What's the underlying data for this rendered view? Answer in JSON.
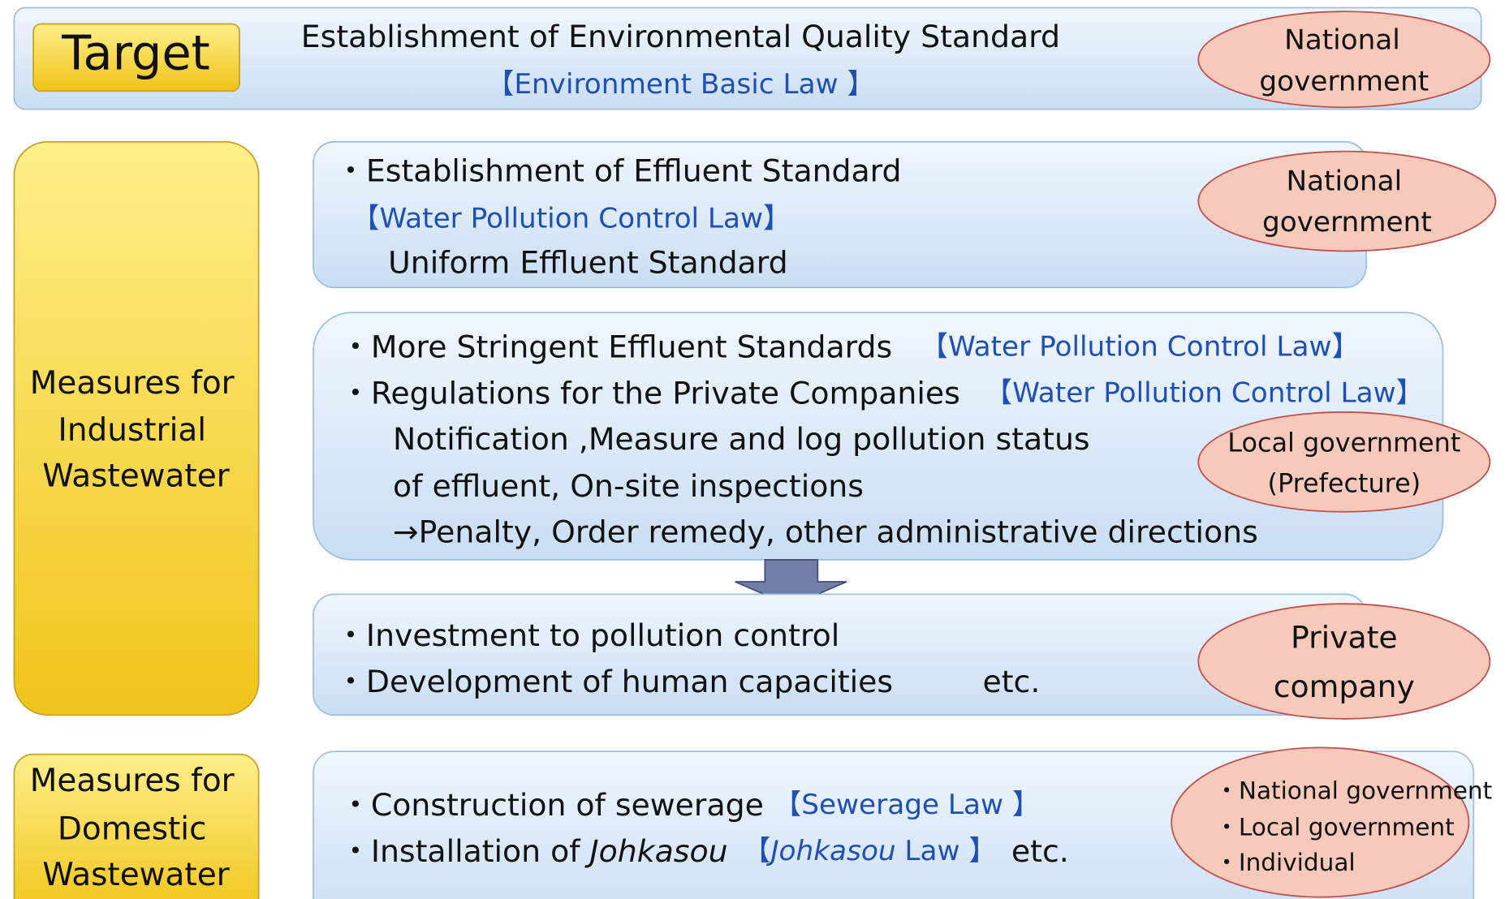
{
  "target": {
    "label": "Target",
    "title": "Establishment of Environmental Quality Standard",
    "law": "【Environment Basic Law 】",
    "actor": [
      "National",
      "government"
    ]
  },
  "industrial": {
    "label": [
      "Measures for",
      "Industrial",
      "Wastewater"
    ],
    "standard": {
      "item": "・Establishment of Effluent Standard",
      "law": "【Water Pollution Control Law】",
      "detail": "Uniform Effluent Standard",
      "actor": [
        "National",
        "government"
      ]
    },
    "regulation": {
      "items": [
        {
          "text": "・More Stringent Effluent Standards",
          "law": "【Water Pollution Control Law】"
        },
        {
          "text": "・Regulations for the Private Companies",
          "law": "【Water Pollution Control Law】"
        }
      ],
      "details": [
        "Notification ,Measure and log pollution status",
        "of effluent, On-site inspections",
        "→Penalty, Order remedy, other administrative directions"
      ],
      "actor": [
        "Local government",
        "(Prefecture)"
      ]
    },
    "company": {
      "items": [
        "・Investment to pollution control",
        "・Development of human capacities"
      ],
      "suffix": "etc.",
      "actor": [
        "Private",
        "company"
      ]
    }
  },
  "domestic": {
    "label": [
      "Measures for",
      "Domestic",
      "Wastewater"
    ],
    "sewerage": {
      "text": "・Construction of sewerage",
      "law": "【Sewerage Law 】"
    },
    "johkasou": {
      "text": "・Installation of ",
      "term": "Johkasou",
      "law_open": "【",
      "law_term": "Johkasou",
      "law_close": " Law 】",
      "suffix": "etc."
    },
    "actors": [
      "・National government",
      "・Local government",
      "・Individual"
    ]
  }
}
